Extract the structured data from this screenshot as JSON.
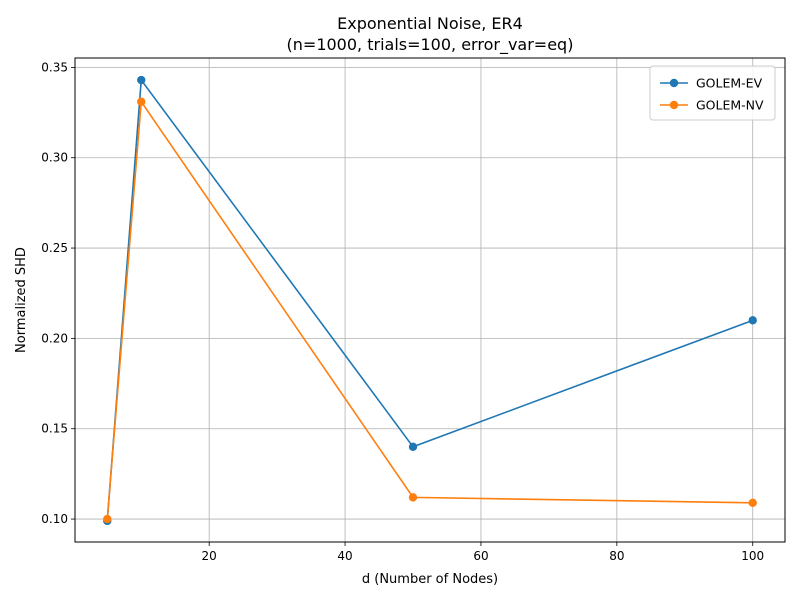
{
  "chart_data": {
    "type": "line",
    "title": "Exponential Noise, ER4",
    "subtitle": "(n=1000, trials=100, error_var=eq)",
    "xlabel": "d (Number of Nodes)",
    "ylabel": "Normalized SHD",
    "xlim": [
      0.25,
      104.75
    ],
    "ylim": [
      0.0873,
      0.3552
    ],
    "xticks": [
      20,
      40,
      60,
      80,
      100
    ],
    "yticks": [
      0.1,
      0.15,
      0.2,
      0.25,
      0.3,
      0.35
    ],
    "xtick_labels": [
      "20",
      "40",
      "60",
      "80",
      "100"
    ],
    "ytick_labels": [
      "0.10",
      "0.15",
      "0.20",
      "0.25",
      "0.30",
      "0.35"
    ],
    "grid": true,
    "legend_position": "top-right",
    "x": [
      5,
      10,
      50,
      100
    ],
    "series": [
      {
        "name": "GOLEM-EV",
        "color": "#1f77b4",
        "values": [
          0.099,
          0.343,
          0.14,
          0.21
        ]
      },
      {
        "name": "GOLEM-NV",
        "color": "#ff7f0e",
        "values": [
          0.1,
          0.331,
          0.112,
          0.109
        ]
      }
    ]
  }
}
